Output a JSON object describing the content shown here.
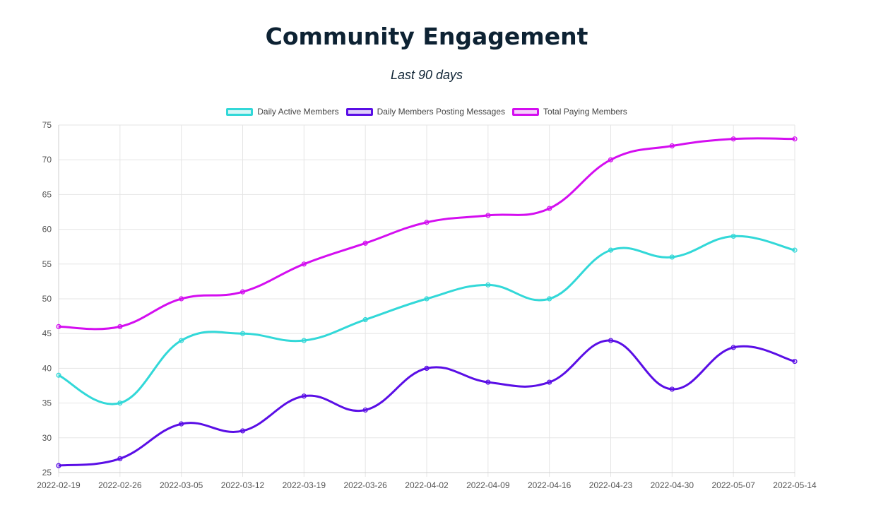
{
  "chart_data": {
    "type": "line",
    "title": "Community Engagement",
    "subtitle": "Last 90 days",
    "categories": [
      "2022-02-19",
      "2022-02-26",
      "2022-03-05",
      "2022-03-12",
      "2022-03-19",
      "2022-03-26",
      "2022-04-02",
      "2022-04-09",
      "2022-04-16",
      "2022-04-23",
      "2022-04-30",
      "2022-05-07",
      "2022-05-14"
    ],
    "ylim": [
      25,
      75
    ],
    "yticks": [
      25,
      30,
      35,
      40,
      45,
      50,
      55,
      60,
      65,
      70,
      75
    ],
    "grid": true,
    "legend_position": "top-center",
    "series": [
      {
        "name": "Daily Active Members",
        "color": "#32d8d8",
        "values": [
          39,
          35,
          44,
          45,
          44,
          47,
          50,
          52,
          50,
          57,
          56,
          59,
          57
        ]
      },
      {
        "name": "Daily Members Posting Messages",
        "color": "#5a0ee6",
        "values": [
          26,
          27,
          32,
          31,
          36,
          34,
          40,
          38,
          38,
          44,
          37,
          43,
          41
        ]
      },
      {
        "name": "Total Paying Members",
        "color": "#d40ef0",
        "values": [
          46,
          46,
          50,
          51,
          55,
          58,
          61,
          62,
          63,
          70,
          72,
          73,
          73
        ]
      }
    ]
  }
}
